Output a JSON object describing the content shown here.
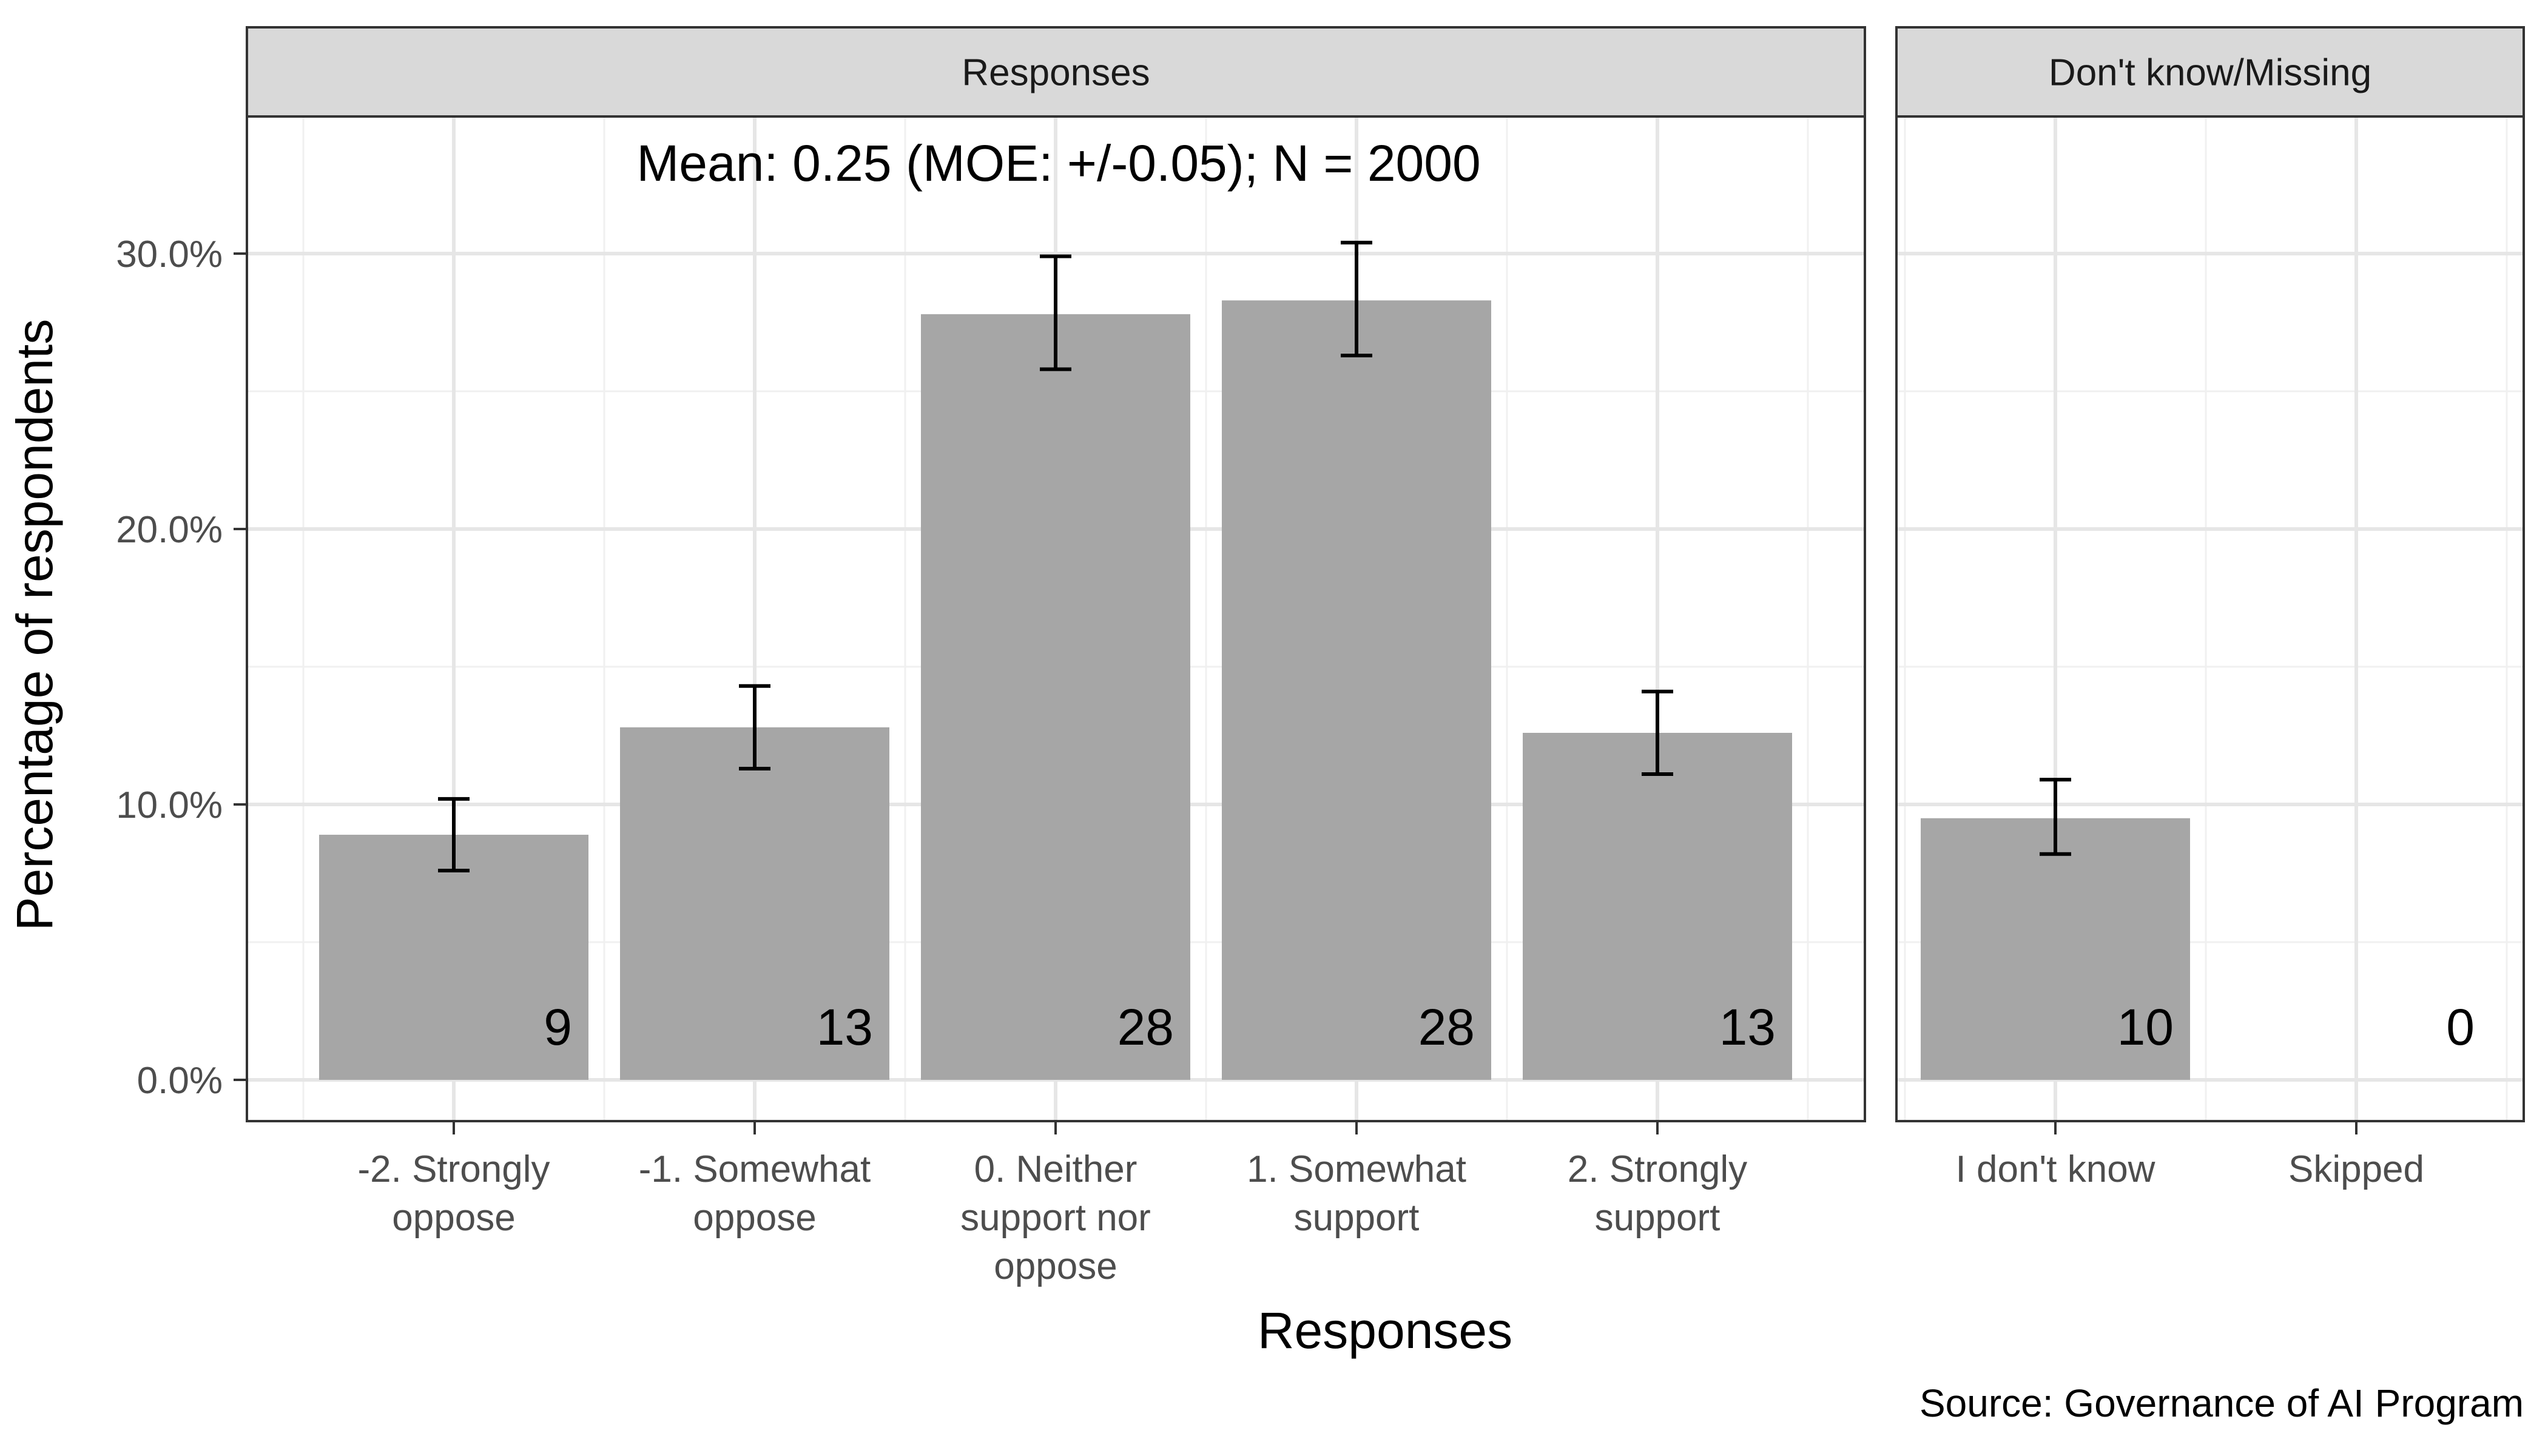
{
  "chart_data": {
    "type": "bar",
    "xlabel": "Responses",
    "ylabel": "Percentage of respondents",
    "caption": "Source: Governance of AI Program",
    "ylim": [
      0,
      35
    ],
    "yticks": [
      0,
      10,
      20,
      30
    ],
    "ytick_labels": [
      "0.0%",
      "10.0%",
      "20.0%",
      "30.0%"
    ],
    "grid": true,
    "bar_color": "#a6a6a6",
    "panels": [
      {
        "strip": "Responses",
        "annotation": "Mean: 0.25 (MOE: +/-0.05); N = 2000",
        "categories": [
          "-2. Strongly\noppose",
          "-1. Somewhat\noppose",
          "0. Neither\nsupport nor\noppose",
          "1. Somewhat\nsupport",
          "2. Strongly\nsupport"
        ],
        "values": [
          8.9,
          12.8,
          27.8,
          28.3,
          12.6
        ],
        "error_low": [
          7.6,
          11.3,
          25.8,
          26.3,
          11.1
        ],
        "error_high": [
          10.2,
          14.3,
          29.9,
          30.4,
          14.1
        ],
        "labels": [
          "9",
          "13",
          "28",
          "28",
          "13"
        ]
      },
      {
        "strip": "Don't know/Missing",
        "categories": [
          "I don't know",
          "Skipped"
        ],
        "values": [
          9.5,
          0
        ],
        "error_low": [
          8.2,
          null
        ],
        "error_high": [
          10.9,
          null
        ],
        "labels": [
          "10",
          "0"
        ]
      }
    ]
  }
}
